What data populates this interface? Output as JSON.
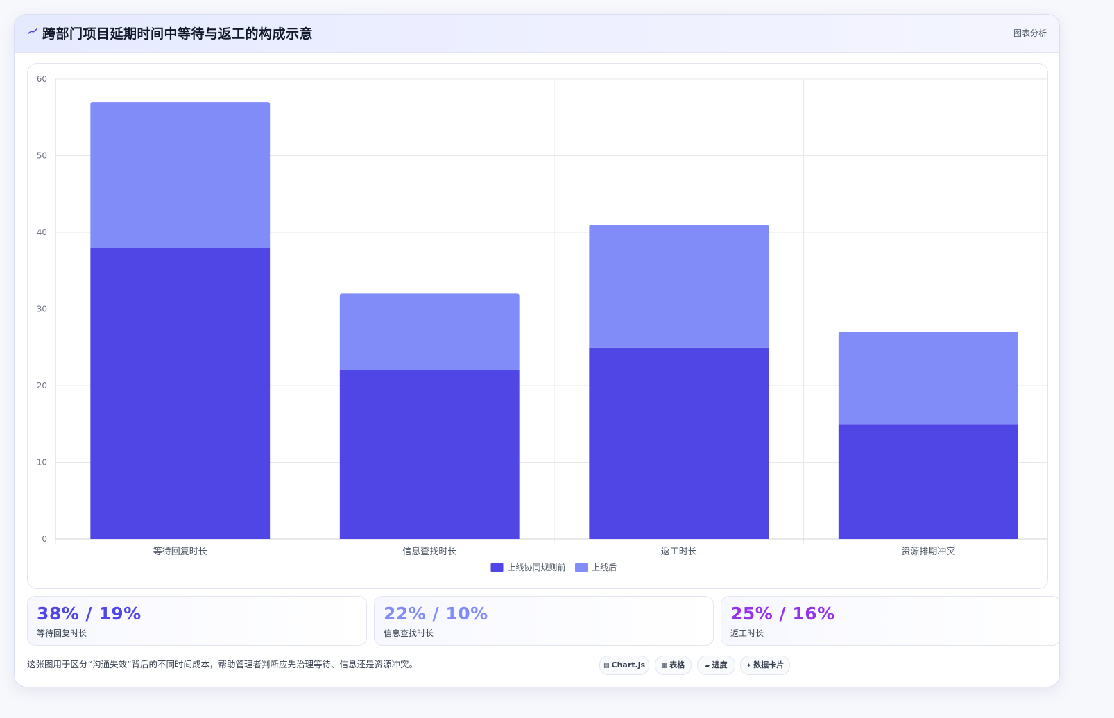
{
  "header": {
    "title": "跨部门项目延期时间中等待与返工的构成示意",
    "tag": "图表分析"
  },
  "chart_data": {
    "type": "bar",
    "stacked": true,
    "categories": [
      "等待回复时长",
      "信息查找时长",
      "返工时长",
      "资源排期冲突"
    ],
    "series": [
      {
        "name": "上线协同规则前",
        "values": [
          38,
          22,
          25,
          15
        ],
        "color": "#4f46e5"
      },
      {
        "name": "上线后",
        "values": [
          19,
          10,
          16,
          12
        ],
        "color": "#818cf8"
      }
    ],
    "ylim": [
      0,
      60
    ],
    "yticks": [
      0,
      10,
      20,
      30,
      40,
      50,
      60
    ],
    "grid": true,
    "legend_position": "bottom-center"
  },
  "stats": [
    {
      "value": "38% / 19%",
      "label": "等待回复时长",
      "color": "#4f46e5"
    },
    {
      "value": "22% / 10%",
      "label": "信息查找时长",
      "color": "#818cf8"
    },
    {
      "value": "25% / 16%",
      "label": "返工时长",
      "color": "#9333ea"
    }
  ],
  "footer": {
    "note": "这张图用于区分“沟通失效”背后的不同时间成本，帮助管理者判断应先治理等待、信息还是资源冲突。"
  },
  "chips": [
    {
      "glyph": "▤",
      "label": "Chart.js"
    },
    {
      "glyph": "▦",
      "label": "表格"
    },
    {
      "glyph": "▰",
      "label": "进度"
    },
    {
      "glyph": "✦",
      "label": "数据卡片"
    }
  ]
}
